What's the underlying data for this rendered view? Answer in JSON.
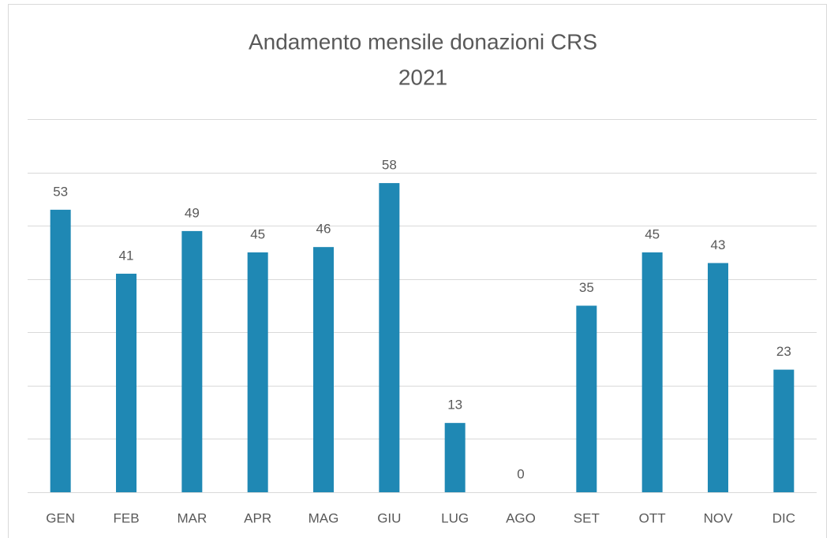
{
  "chart_data": {
    "type": "bar",
    "title": "Andamento mensile donazioni CRS",
    "subtitle": "2021",
    "categories": [
      "GEN",
      "FEB",
      "MAR",
      "APR",
      "MAG",
      "GIU",
      "LUG",
      "AGO",
      "SET",
      "OTT",
      "NOV",
      "DIC"
    ],
    "values": [
      53,
      41,
      49,
      45,
      46,
      58,
      13,
      0,
      35,
      45,
      43,
      23
    ],
    "color": "#1f88b4",
    "ylim": [
      0,
      70
    ],
    "yticks": [
      0,
      10,
      20,
      30,
      40,
      50,
      60,
      70
    ],
    "grid": true
  }
}
